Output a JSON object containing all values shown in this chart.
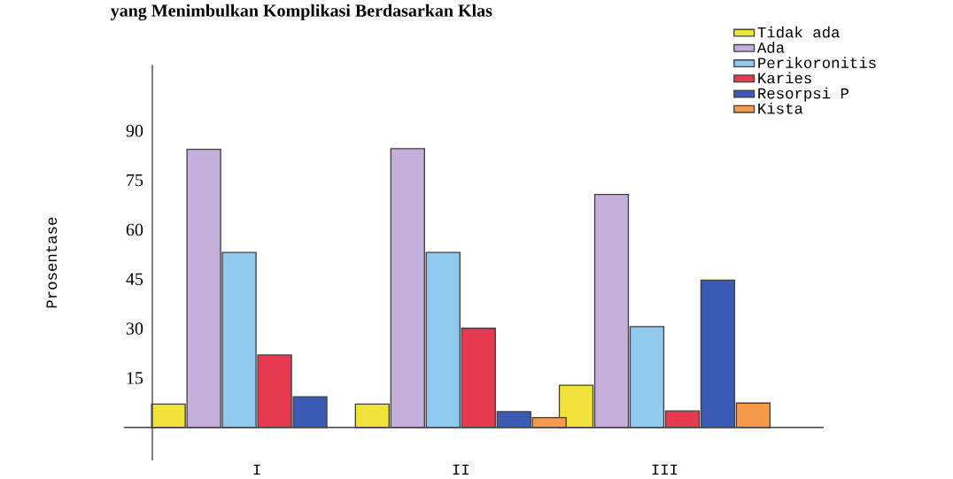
{
  "chart_data": {
    "type": "bar",
    "title": "yang Menimbulkan Komplikasi Berdasarkan Klas",
    "ylabel": "Prosentase",
    "categories": [
      "I",
      "II",
      "III"
    ],
    "series": [
      {
        "name": "Tidak ada",
        "color": "#f2e33c",
        "values": [
          7.1,
          7.1,
          12.8
        ]
      },
      {
        "name": "Ada",
        "color": "#c4b0da",
        "values": [
          84.4,
          84.6,
          70.7
        ]
      },
      {
        "name": "Perikoronitis",
        "color": "#92c9ef",
        "values": [
          53.1,
          53.1,
          30.6
        ]
      },
      {
        "name": "Karies",
        "color": "#e63a50",
        "values": [
          22.0,
          30.1,
          5.0
        ]
      },
      {
        "name": "Resorpsi P",
        "color": "#3a5ab3",
        "values": [
          9.3,
          4.8,
          44.7
        ]
      },
      {
        "name": "Kista",
        "color": "#f49a4c",
        "values": [
          null,
          3.0,
          7.4
        ]
      }
    ],
    "ylim": [
      -10,
      110
    ],
    "yticks": [
      15,
      30,
      45,
      60,
      75,
      90
    ],
    "legend": "top right"
  }
}
